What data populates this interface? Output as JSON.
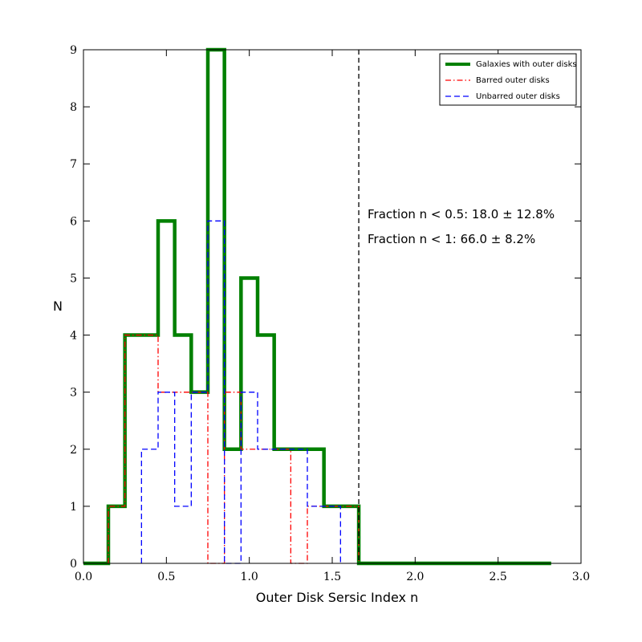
{
  "chart_data": {
    "type": "histogram",
    "xlabel": "Outer Disk Sersic Index n",
    "ylabel": "N",
    "xlim": [
      0.0,
      3.0
    ],
    "ylim": [
      0,
      9
    ],
    "xticks": [
      0.0,
      0.5,
      1.0,
      1.5,
      2.0,
      2.5,
      3.0
    ],
    "xtick_labels": [
      "0.0",
      "0.5",
      "1.0",
      "1.5",
      "2.0",
      "2.5",
      "3.0"
    ],
    "yticks": [
      0,
      1,
      2,
      3,
      4,
      5,
      6,
      7,
      8,
      9
    ],
    "ytick_labels": [
      "0",
      "1",
      "2",
      "3",
      "4",
      "5",
      "6",
      "7",
      "8",
      "9"
    ],
    "legend_position": "top-right",
    "series": [
      {
        "name": "Galaxies with outer disks",
        "color": "#008000",
        "style": "solid",
        "bin_edges": [
          0.0,
          0.15,
          0.25,
          0.45,
          0.55,
          0.65,
          0.75,
          0.85,
          0.95,
          1.05,
          1.15,
          1.45,
          1.66,
          2.82
        ],
        "counts": [
          0,
          1,
          4,
          6,
          4,
          3,
          9,
          2,
          5,
          4,
          2,
          1,
          0
        ]
      },
      {
        "name": "Barred outer disks",
        "color": "#ff0000",
        "style": "dashdot",
        "bin_edges": [
          0.15,
          0.25,
          0.35,
          0.45,
          0.65,
          0.75,
          0.85,
          0.95,
          1.15,
          1.25,
          1.35,
          1.45,
          1.55,
          1.66
        ],
        "counts": [
          1,
          4,
          4,
          3,
          3,
          0,
          3,
          2,
          2,
          0,
          1,
          1,
          1
        ]
      },
      {
        "name": "Unbarred outer disks",
        "color": "#0000ff",
        "style": "dashed",
        "bin_edges": [
          0.35,
          0.45,
          0.55,
          0.65,
          0.75,
          0.85,
          0.95,
          1.05,
          1.15,
          1.35,
          1.45,
          1.55
        ],
        "counts": [
          2,
          3,
          1,
          3,
          6,
          0,
          3,
          2,
          2,
          1,
          1
        ]
      }
    ],
    "vline": {
      "x": 1.66,
      "color": "#000000",
      "style": "dashed"
    },
    "annotations": [
      {
        "text": "Fraction n < 0.5: 18.0 ± 12.8%"
      },
      {
        "text": "Fraction n < 1: 66.0 ± 8.2%"
      }
    ]
  }
}
